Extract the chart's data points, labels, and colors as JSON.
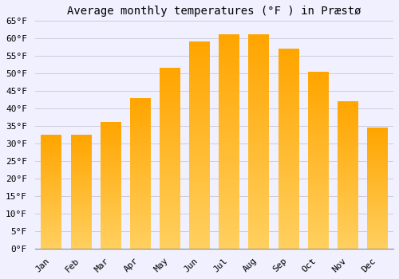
{
  "title": "Average monthly temperatures (°F ) in Præstø",
  "months": [
    "Jan",
    "Feb",
    "Mar",
    "Apr",
    "May",
    "Jun",
    "Jul",
    "Aug",
    "Sep",
    "Oct",
    "Nov",
    "Dec"
  ],
  "values": [
    32.5,
    32.5,
    36.0,
    43.0,
    51.5,
    59.0,
    61.0,
    61.0,
    57.0,
    50.5,
    42.0,
    34.5
  ],
  "bar_color_main": "#FFA500",
  "bar_color_light": "#FFD060",
  "background_color": "#F0F0FF",
  "grid_color": "#CCCCDD",
  "ylim": [
    0,
    65
  ],
  "ytick_step": 5,
  "title_fontsize": 10,
  "tick_fontsize": 8,
  "font_family": "monospace"
}
